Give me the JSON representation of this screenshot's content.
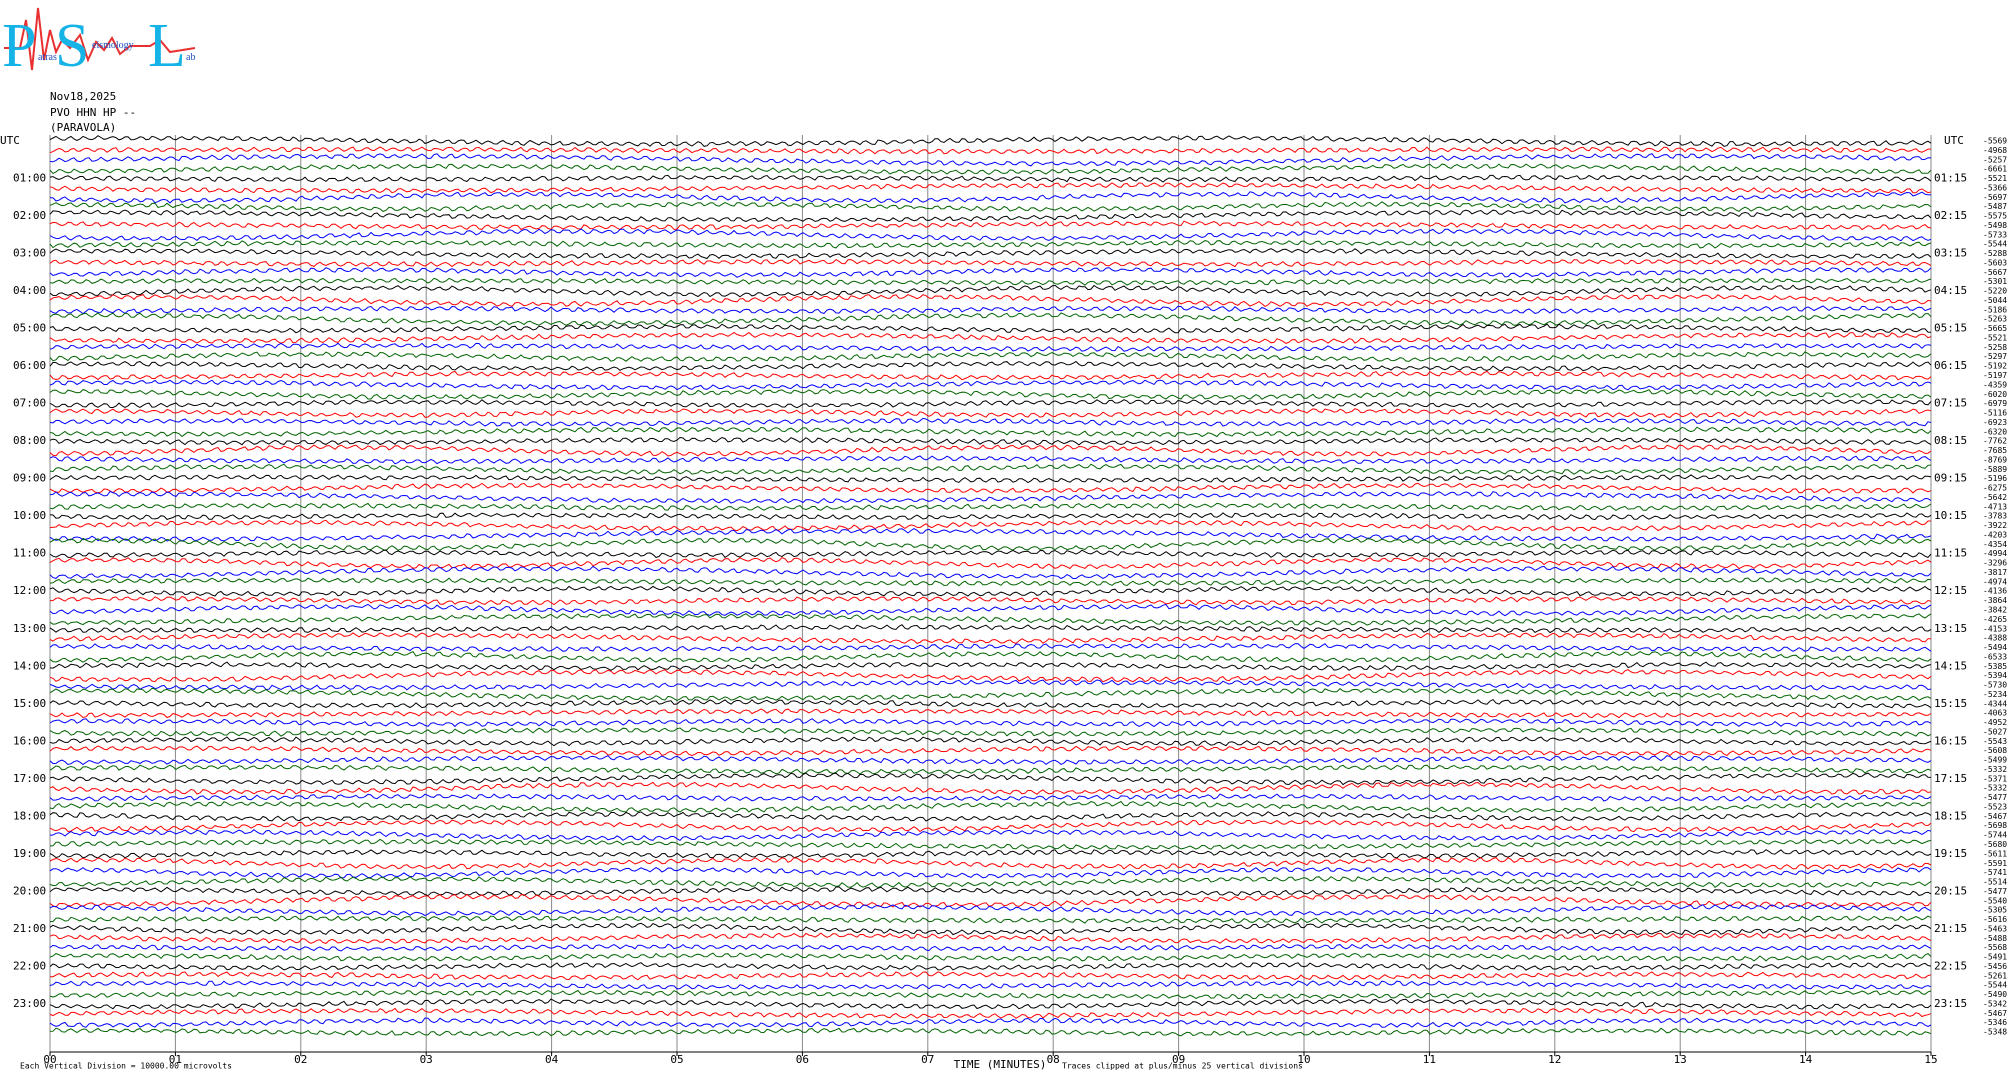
{
  "logo": [
    "P",
    "atras",
    "S",
    "eismology",
    "L",
    "ab"
  ],
  "chart_data": {
    "type": "helicorder",
    "date": "Nov18,2025",
    "station": "PVO HHN HP --",
    "location": "(PARAVOLA)",
    "left_header": "UTC",
    "right_header": "UTC",
    "left_labels": [
      "01:00",
      "02:00",
      "03:00",
      "04:00",
      "05:00",
      "06:00",
      "07:00",
      "08:00",
      "09:00",
      "10:00",
      "11:00",
      "12:00",
      "13:00",
      "14:00",
      "15:00",
      "16:00",
      "17:00",
      "18:00",
      "19:00",
      "20:00",
      "21:00",
      "22:00",
      "23:00"
    ],
    "right_labels": [
      "01:15",
      "02:15",
      "03:15",
      "04:15",
      "05:15",
      "06:15",
      "07:15",
      "08:15",
      "09:15",
      "10:15",
      "11:15",
      "12:15",
      "13:15",
      "14:15",
      "15:15",
      "16:15",
      "17:15",
      "18:15",
      "19:15",
      "20:15",
      "21:15",
      "22:15",
      "23:15"
    ],
    "trace_offsets": [
      -5569,
      -4968,
      -5257,
      -6661,
      -5521,
      -5366,
      -5697,
      -5487,
      -5575,
      -5498,
      -5733,
      -5544,
      -5288,
      -5603,
      -5667,
      -5301,
      -5220,
      -5044,
      -5186,
      -5263,
      -5665,
      -5521,
      -5258,
      -5297,
      -5192,
      -5197,
      -4359,
      -6020,
      -6979,
      -5116,
      -6923,
      -6320,
      -7762,
      -7685,
      -8769,
      -5889,
      -5196,
      -6275,
      -5642,
      -4713,
      -3783,
      -3922,
      -4203,
      -4354,
      -4994,
      -3296,
      -3817,
      -4974,
      -4136,
      -3864,
      -3842,
      -4265,
      -4153,
      -4388,
      -5494,
      -6533,
      -5385,
      -5394,
      -5730,
      -5234,
      -4344,
      -4063,
      -4952,
      -5027,
      -5543,
      -5608,
      -5499,
      -5332,
      -5371,
      -5332,
      -5477,
      -5523,
      -5467,
      -5698,
      -5744,
      -5680,
      -5611,
      -5591,
      -5741,
      -5514,
      -5477,
      -5540,
      -5305,
      -5616,
      -5463,
      -5488,
      -5568,
      -5491,
      -5456,
      -5261,
      -5544,
      -5490,
      -5342,
      -5467,
      -5346,
      -5348
    ],
    "trace_colors": [
      "#000000",
      "#ff0000",
      "#0000ff",
      "#006400"
    ],
    "x_label": "TIME (MINUTES)",
    "xlim": [
      0,
      15
    ],
    "xticks": [
      {
        "value": 0,
        "label": "00"
      },
      {
        "value": 1,
        "label": "01"
      },
      {
        "value": 2,
        "label": "02"
      },
      {
        "value": 3,
        "label": "03"
      },
      {
        "value": 4,
        "label": "04"
      },
      {
        "value": 5,
        "label": "05"
      },
      {
        "value": 6,
        "label": "06"
      },
      {
        "value": 7,
        "label": "07"
      },
      {
        "value": 8,
        "label": "08"
      },
      {
        "value": 9,
        "label": "09"
      },
      {
        "value": 10,
        "label": "10"
      },
      {
        "value": 11,
        "label": "11"
      },
      {
        "value": 12,
        "label": "12"
      },
      {
        "value": 13,
        "label": "13"
      },
      {
        "value": 14,
        "label": "14"
      },
      {
        "value": 15,
        "label": "15"
      }
    ],
    "grid": true,
    "scale_note": "Each Vertical Division = 10000.00 microvolts",
    "clip_note": "Traces clipped at plus/minus 25 vertical divisions"
  }
}
